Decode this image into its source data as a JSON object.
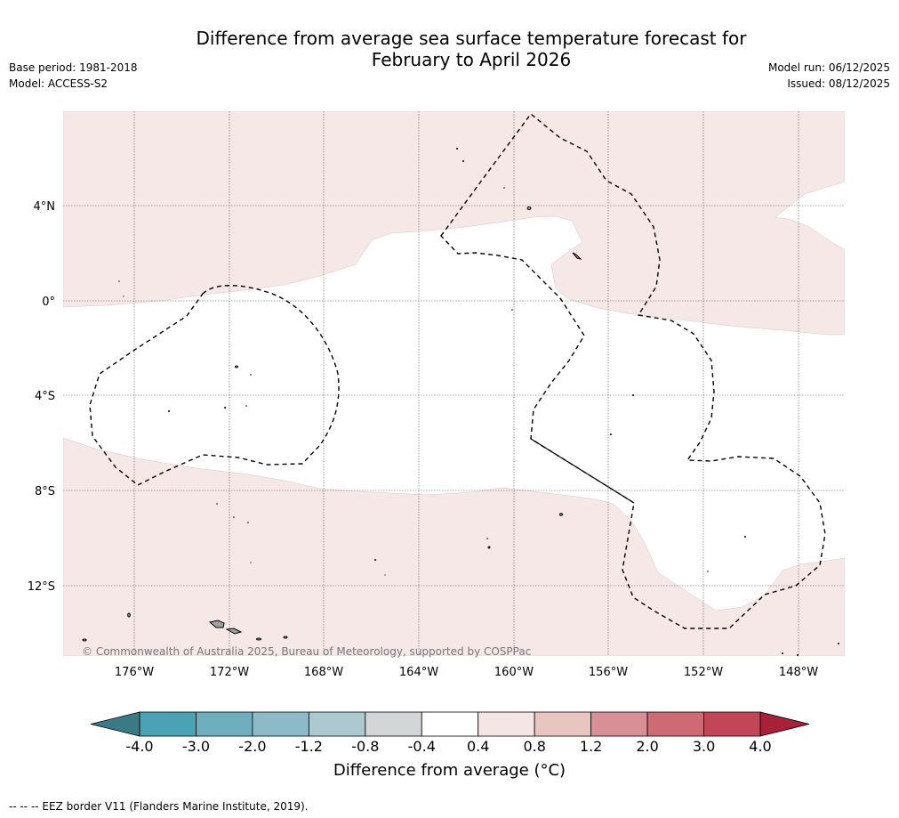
{
  "header": {
    "title_line1": "Difference from average sea surface temperature forecast for",
    "title_line2": "February to April 2026",
    "base_period": "Base period: 1981-2018",
    "model": "Model: ACCESS-S2",
    "model_run": "Model run: 06/12/2025",
    "issued": "Issued: 08/12/2025"
  },
  "map": {
    "lat_labels": [
      "4°N",
      "0°",
      "4°S",
      "8°S",
      "12°S"
    ],
    "lon_labels": [
      "176°W",
      "172°W",
      "168°W",
      "164°W",
      "160°W",
      "156°W",
      "152°W",
      "148°W"
    ],
    "copyright": "© Commonwealth of Australia 2025, Bureau of Meteorology, supported by COSPPac",
    "land_color": "#a0a0a0",
    "ocean_default_color": "#ffffff",
    "warm_anomaly_color": "#f5e8e6"
  },
  "colorbar": {
    "ticks": [
      "-4.0",
      "-3.0",
      "-2.0",
      "-1.2",
      "-0.8",
      "-0.4",
      "0.4",
      "0.8",
      "1.2",
      "2.0",
      "3.0",
      "4.0"
    ],
    "under_color": "#3a7a84",
    "over_color": "#a8213a",
    "colors": [
      "#4aa3b5",
      "#6eaebd",
      "#8dbac6",
      "#acc9cf",
      "#d3d6d6",
      "#ffffff",
      "#f4e6e4",
      "#e8c6c0",
      "#d89096",
      "#cd6a74",
      "#c14756"
    ],
    "label": "Difference from average (°C)"
  },
  "footnote": "--  --  -- EEZ border V11 (Flanders Marine Institute, 2019)."
}
